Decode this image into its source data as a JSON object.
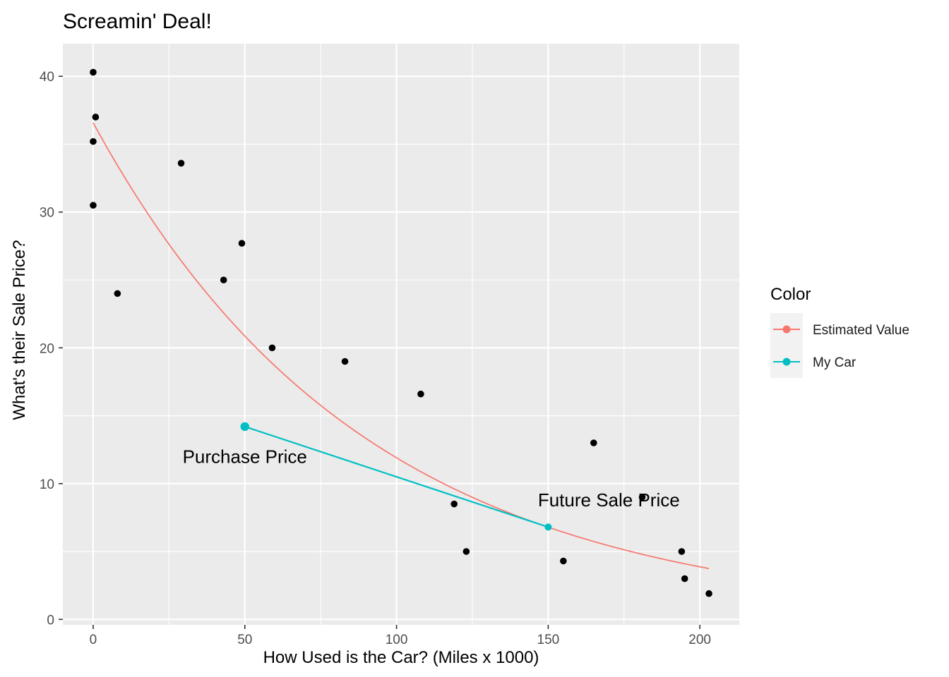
{
  "chart_data": {
    "type": "scatter",
    "title": "Screamin' Deal!",
    "xlabel": "How Used is the Car? (Miles x 1000)",
    "ylabel": "What's their Sale Price?",
    "xlim": [
      -10,
      213
    ],
    "ylim": [
      -0.4,
      42.4
    ],
    "x_ticks": [
      0,
      50,
      100,
      150,
      200
    ],
    "y_ticks": [
      0,
      10,
      20,
      30,
      40
    ],
    "grid": true,
    "legend": {
      "title": "Color",
      "position": "right",
      "entries": [
        {
          "label": "Estimated Value",
          "color": "#F8766D"
        },
        {
          "label": "My Car",
          "color": "#00BFC4"
        }
      ]
    },
    "points": [
      {
        "x": 0,
        "y": 40.3
      },
      {
        "x": 0.8,
        "y": 37.0
      },
      {
        "x": 0,
        "y": 35.2
      },
      {
        "x": 0,
        "y": 30.5
      },
      {
        "x": 8,
        "y": 24.0
      },
      {
        "x": 29,
        "y": 33.6
      },
      {
        "x": 43,
        "y": 25.0
      },
      {
        "x": 49,
        "y": 27.7
      },
      {
        "x": 59,
        "y": 20.0
      },
      {
        "x": 83,
        "y": 19.0
      },
      {
        "x": 108,
        "y": 16.6
      },
      {
        "x": 119,
        "y": 8.5
      },
      {
        "x": 123,
        "y": 5.0
      },
      {
        "x": 155,
        "y": 4.3
      },
      {
        "x": 165,
        "y": 13.0
      },
      {
        "x": 181,
        "y": 9.0
      },
      {
        "x": 194,
        "y": 5.0
      },
      {
        "x": 195,
        "y": 3.0
      },
      {
        "x": 203,
        "y": 1.9
      }
    ],
    "series": [
      {
        "name": "Estimated Value",
        "color": "#F8766D",
        "model": "exponential",
        "x_range": [
          0,
          203
        ],
        "x": [
          0,
          25,
          50,
          75,
          100,
          125,
          150,
          175,
          203
        ],
        "y": [
          36.5,
          27.5,
          21.0,
          15.8,
          11.9,
          9.0,
          6.8,
          5.1,
          3.75
        ]
      },
      {
        "name": "My Car",
        "color": "#00BFC4",
        "x": [
          50,
          150
        ],
        "y": [
          14.2,
          6.8
        ]
      }
    ],
    "annotations": [
      {
        "text": "Purchase Price",
        "x": 50,
        "y": 12.0
      },
      {
        "text": "Future Sale Price",
        "x": 170,
        "y": 8.8
      }
    ]
  }
}
